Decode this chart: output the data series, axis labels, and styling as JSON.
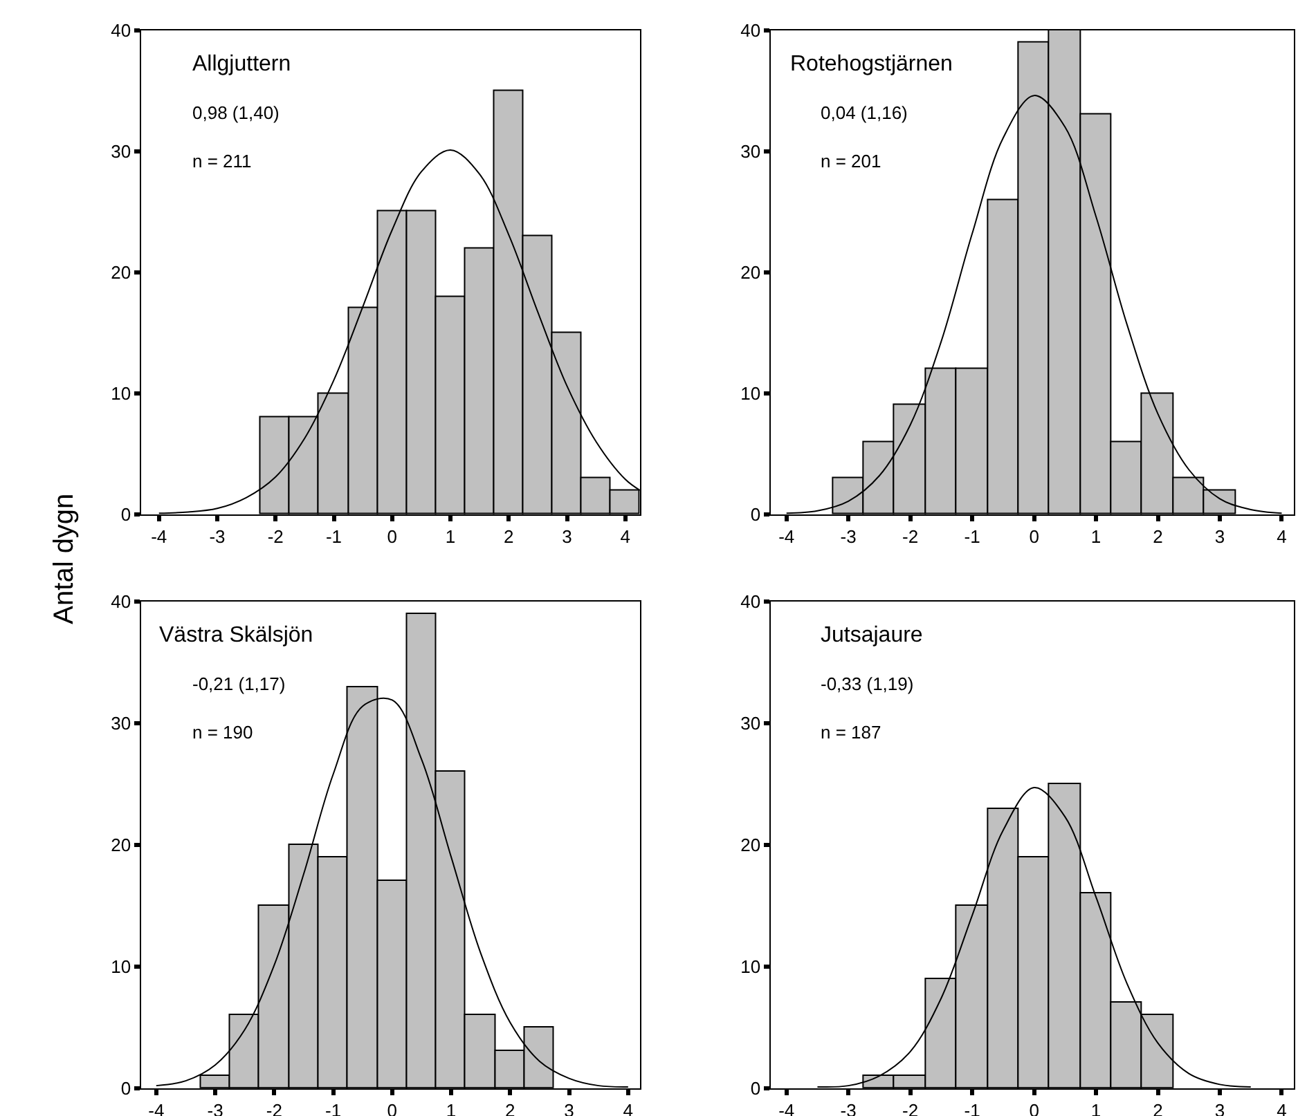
{
  "chart_data": [
    {
      "type": "histogram",
      "title": "Allgjuttern",
      "ylabel": "Antal dygn",
      "annotations": [
        "0,98 (1,40)",
        "n = 211"
      ],
      "xlim": [
        -4.3,
        4.25
      ],
      "xticks": [
        -4,
        -3,
        -2,
        -1,
        0,
        1,
        2,
        3,
        4
      ],
      "ylim": [
        0,
        40
      ],
      "yticks": [
        0,
        10,
        20,
        30,
        40
      ],
      "series": [
        {
          "color": "#c0c0c0",
          "bins": [
            -2.25,
            -1.75,
            -1.25,
            -0.75,
            -0.25,
            0.25,
            0.75,
            1.25,
            1.75,
            2.25,
            2.75,
            3.25,
            3.75,
            4.25
          ],
          "values": [
            8,
            8,
            10,
            17,
            25,
            25,
            18,
            22,
            35,
            23,
            15,
            3,
            2
          ]
        },
        {
          "type": "line",
          "color": "#000000",
          "x": [
            -4,
            -3.5,
            -3,
            -2.5,
            -2,
            -1.5,
            -1,
            -0.5,
            0,
            0.5,
            1,
            1.5,
            2,
            2.5,
            3,
            3.5,
            4,
            4.25
          ],
          "values": [
            0.1,
            0.2,
            0.5,
            1.4,
            3.1,
            6.3,
            11.1,
            17.2,
            23.5,
            28.3,
            30.1,
            28.1,
            23.1,
            16.7,
            10.6,
            6.0,
            2.9,
            2.0
          ]
        }
      ]
    },
    {
      "type": "histogram",
      "title": "Rotehogstjärnen",
      "annotations": [
        "0,04 (1,16)",
        "n = 201"
      ],
      "xlim": [
        -4.25,
        4.2
      ],
      "xticks": [
        -4,
        -3,
        -2,
        -1,
        0,
        1,
        2,
        3,
        4
      ],
      "ylim": [
        0,
        40
      ],
      "yticks": [
        0,
        10,
        20,
        30,
        40
      ],
      "series": [
        {
          "color": "#c0c0c0",
          "bins": [
            -3.25,
            -2.75,
            -2.25,
            -1.75,
            -1.25,
            -0.75,
            -0.25,
            0.25,
            0.75,
            1.25,
            1.75,
            2.25,
            2.75,
            3.25
          ],
          "values": [
            3,
            6,
            9,
            12,
            12,
            26,
            39,
            40,
            33,
            6,
            10,
            3,
            2
          ]
        },
        {
          "type": "line",
          "color": "#000000",
          "x": [
            -4,
            -3.5,
            -3,
            -2.5,
            -2,
            -1.5,
            -1,
            -0.5,
            0,
            0.5,
            1,
            1.5,
            2,
            2.5,
            3,
            3.5,
            4
          ],
          "values": [
            0.1,
            0.3,
            1.1,
            3.2,
            7.4,
            14.3,
            23.2,
            31.1,
            34.6,
            32.0,
            24.6,
            15.7,
            8.3,
            3.7,
            1.3,
            0.4,
            0.1
          ]
        }
      ]
    },
    {
      "type": "histogram",
      "title": "Västra Skälsjön",
      "annotations": [
        "-0,21 (1,17)",
        "n = 190"
      ],
      "xlim": [
        -4.25,
        4.2
      ],
      "xticks": [
        -4,
        -3,
        -2,
        -1,
        0,
        1,
        2,
        3,
        4
      ],
      "ylim": [
        0,
        40
      ],
      "yticks": [
        0,
        10,
        20,
        30,
        40
      ],
      "series": [
        {
          "color": "#c0c0c0",
          "bins": [
            -3.25,
            -2.75,
            -2.25,
            -1.75,
            -1.25,
            -0.75,
            -0.25,
            0.25,
            0.75,
            1.25,
            1.75,
            2.25,
            2.75
          ],
          "values": [
            1,
            6,
            15,
            20,
            19,
            33,
            17,
            39,
            26,
            6,
            3,
            5
          ]
        },
        {
          "type": "line",
          "color": "#000000",
          "x": [
            -4,
            -3.5,
            -3,
            -2.5,
            -2,
            -1.5,
            -1,
            -0.5,
            0,
            0.5,
            1,
            1.5,
            2,
            2.5,
            3,
            3.5,
            4
          ],
          "values": [
            0.2,
            0.6,
            1.9,
            4.8,
            10.1,
            17.6,
            25.8,
            31.4,
            31.9,
            27.0,
            19.0,
            11.1,
            5.4,
            2.2,
            0.8,
            0.2,
            0.1
          ]
        }
      ]
    },
    {
      "type": "histogram",
      "title": "Jutsajaure",
      "annotations": [
        "-0,33 (1,19)",
        "n = 187"
      ],
      "xlim": [
        -4.25,
        4.2
      ],
      "xticks": [
        -4,
        -3,
        -2,
        -1,
        0,
        1,
        2,
        3,
        4
      ],
      "ylim": [
        0,
        40
      ],
      "yticks": [
        0,
        10,
        20,
        30,
        40
      ],
      "series": [
        {
          "color": "#c0c0c0",
          "bins": [
            -2.75,
            -2.25,
            -1.75,
            -1.25,
            -0.75,
            -0.25,
            0.25,
            0.75,
            1.25,
            1.75,
            2.25
          ],
          "values": [
            1,
            1,
            9,
            15,
            23,
            19,
            25,
            16,
            7,
            6
          ]
        },
        {
          "type": "line",
          "color": "#000000",
          "x": [
            -3.5,
            -3,
            -2.5,
            -2,
            -1.5,
            -1,
            -0.5,
            0,
            0.5,
            1,
            1.5,
            2,
            2.5,
            3,
            3.5
          ],
          "values": [
            0.1,
            0.2,
            1.0,
            3.0,
            7.4,
            14.2,
            21.2,
            24.7,
            22.3,
            15.7,
            8.6,
            3.7,
            1.2,
            0.3,
            0.1
          ]
        }
      ]
    }
  ]
}
